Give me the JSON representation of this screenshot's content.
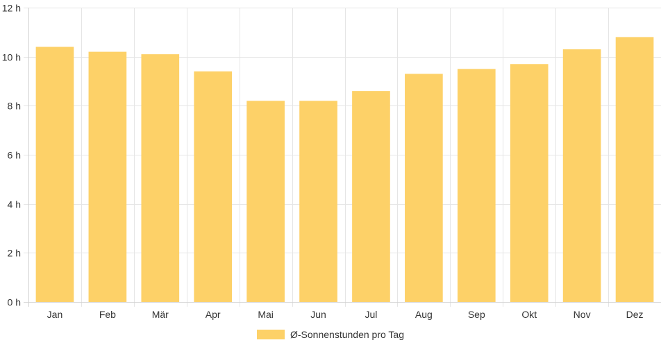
{
  "chart_data": {
    "type": "bar",
    "categories": [
      "Jan",
      "Feb",
      "Mär",
      "Apr",
      "Mai",
      "Jun",
      "Jul",
      "Aug",
      "Sep",
      "Okt",
      "Nov",
      "Dez"
    ],
    "series": [
      {
        "name": "Ø-Sonnenstunden pro Tag",
        "values": [
          10.4,
          10.2,
          10.1,
          9.4,
          8.2,
          8.2,
          8.6,
          9.3,
          9.5,
          9.7,
          10.3,
          10.8
        ],
        "color": "#fdd168"
      }
    ],
    "title": "",
    "xlabel": "",
    "ylabel": "",
    "ylim": [
      0,
      12
    ],
    "y_ticks": [
      0,
      2,
      4,
      6,
      8,
      10,
      12
    ],
    "y_tick_suffix": " h",
    "grid": true,
    "legend_position": "bottom"
  },
  "legend": {
    "label": "Ø-Sonnenstunden pro Tag",
    "color": "#fdd168"
  }
}
